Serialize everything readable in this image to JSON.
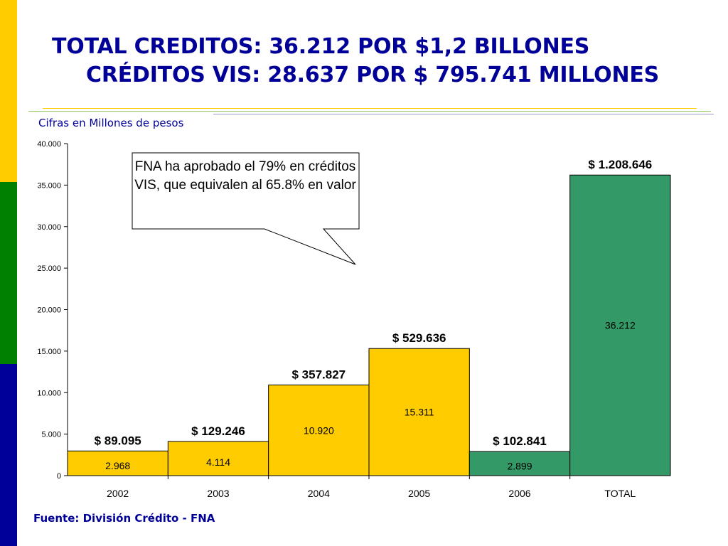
{
  "title": {
    "line1": "TOTAL CREDITOS: 36.212 POR $1,2 BILLONES",
    "line2": "CRÉDITOS VIS: 28.637 POR $ 795.741 MILLONES"
  },
  "subtitle": "Cifras en Millones de pesos",
  "source": "Fuente: División Crédito - FNA",
  "callout": "FNA ha aprobado el 79% en créditos VIS, que equivalen al 65.8% en valor",
  "colors": {
    "stripe_yellow": "#ffcc00",
    "stripe_green": "#008000",
    "stripe_blue": "#000099",
    "title": "#000099",
    "bar_yellow": "#ffcc00",
    "bar_green": "#339966"
  },
  "chart_data": {
    "type": "bar",
    "categories": [
      "2002",
      "2003",
      "2004",
      "2005",
      "2006",
      "TOTAL"
    ],
    "values": [
      2968,
      4114,
      10920,
      15311,
      2899,
      36212
    ],
    "value_labels": [
      "2.968",
      "4.114",
      "10.920",
      "15.311",
      "2.899",
      "36.212"
    ],
    "amount_labels": [
      "$ 89.095",
      "$ 129.246",
      "$ 357.827",
      "$ 529.636",
      "$ 102.841",
      "$ 1.208.646"
    ],
    "bar_colors": [
      "#ffcc00",
      "#ffcc00",
      "#ffcc00",
      "#ffcc00",
      "#339966",
      "#339966"
    ],
    "ylim": [
      0,
      40000
    ],
    "yticks": [
      0,
      5000,
      10000,
      15000,
      20000,
      25000,
      30000,
      35000,
      40000
    ],
    "ytick_labels": [
      "0",
      "5.000",
      "10.000",
      "15.000",
      "20.000",
      "25.000",
      "30.000",
      "35.000",
      "40.000"
    ],
    "grid": false,
    "xlabel": "",
    "ylabel": ""
  }
}
